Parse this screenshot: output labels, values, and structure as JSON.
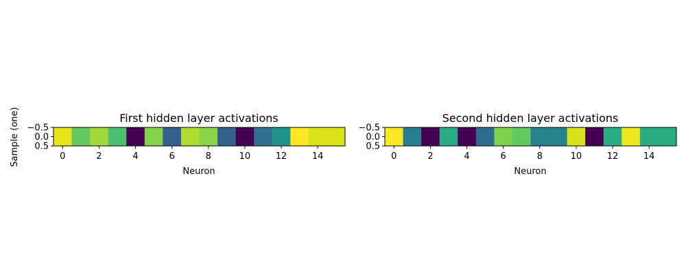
{
  "figure": {
    "shared_ylabel": "Sample (one)"
  },
  "chart_data": [
    {
      "type": "heatmap",
      "title": "First hidden layer activations",
      "xlabel": "Neuron",
      "ylabel": "Sample (one)",
      "xticks": [
        "0",
        "2",
        "4",
        "6",
        "8",
        "10",
        "12",
        "14"
      ],
      "yticks": [
        "−0.5",
        "0.0",
        "0.5"
      ],
      "x": [
        0,
        1,
        2,
        3,
        4,
        5,
        6,
        7,
        8,
        9,
        10,
        11,
        12,
        13,
        14,
        15
      ],
      "xlim": [
        -0.5,
        15.5
      ],
      "ylim": [
        0.5,
        -0.5
      ],
      "colormap": "viridis",
      "values_normalized": [
        0.93,
        0.68,
        0.77,
        0.64,
        0.0,
        0.73,
        0.27,
        0.79,
        0.74,
        0.28,
        0.0,
        0.33,
        0.46,
        1.0,
        0.89,
        0.89
      ]
    },
    {
      "type": "heatmap",
      "title": "Second hidden layer activations",
      "xlabel": "Neuron",
      "ylabel": "",
      "xticks": [
        "0",
        "2",
        "4",
        "6",
        "8",
        "10",
        "12",
        "14"
      ],
      "yticks": [
        "−0.5",
        "0.0",
        "0.5"
      ],
      "x": [
        0,
        1,
        2,
        3,
        4,
        5,
        6,
        7,
        8,
        9,
        10,
        11,
        12,
        13,
        14,
        15
      ],
      "xlim": [
        -0.5,
        15.5
      ],
      "ylim": [
        0.5,
        -0.5
      ],
      "colormap": "viridis",
      "values_normalized": [
        1.0,
        0.38,
        0.0,
        0.55,
        0.0,
        0.32,
        0.72,
        0.68,
        0.4,
        0.4,
        0.88,
        0.0,
        0.55,
        0.95,
        0.55,
        0.55
      ]
    }
  ]
}
